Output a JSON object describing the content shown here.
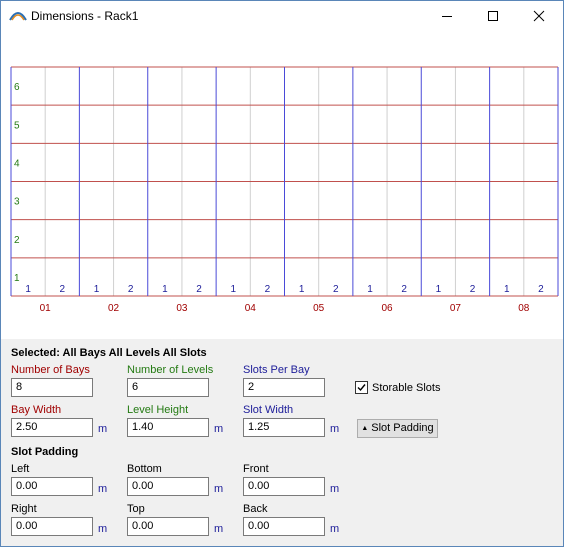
{
  "window": {
    "title": "Dimensions - Rack1"
  },
  "chart_data": {
    "type": "table",
    "levels": [
      "1",
      "2",
      "3",
      "4",
      "5",
      "6"
    ],
    "bays": [
      "01",
      "02",
      "03",
      "04",
      "05",
      "06",
      "07",
      "08"
    ],
    "slot_labels": [
      "1",
      "2"
    ],
    "colors": {
      "level": "#237a12",
      "bay": "#a00000",
      "slot": "#1c1c99",
      "level_line": "#c0504d",
      "bay_line": "#4a4ad8",
      "slot_line": "#d0d0d0"
    }
  },
  "panel": {
    "selected_title": "Selected: All Bays All Levels All Slots",
    "number_of_bays": {
      "label": "Number of Bays",
      "value": "8"
    },
    "number_of_levels": {
      "label": "Number of Levels",
      "value": "6"
    },
    "slots_per_bay": {
      "label": "Slots Per Bay",
      "value": "2"
    },
    "storable_slots": {
      "label": "Storable Slots",
      "checked": true
    },
    "bay_width": {
      "label": "Bay Width",
      "value": "2.50",
      "unit": "m"
    },
    "level_height": {
      "label": "Level Height",
      "value": "1.40",
      "unit": "m"
    },
    "slot_width": {
      "label": "Slot Width",
      "value": "1.25",
      "unit": "m"
    },
    "slot_padding_button": {
      "label": "Slot Padding"
    },
    "slot_padding_title": "Slot Padding",
    "left": {
      "label": "Left",
      "value": "0.00",
      "unit": "m"
    },
    "bottom": {
      "label": "Bottom",
      "value": "0.00",
      "unit": "m"
    },
    "front": {
      "label": "Front",
      "value": "0.00",
      "unit": "m"
    },
    "right": {
      "label": "Right",
      "value": "0.00",
      "unit": "m"
    },
    "top": {
      "label": "Top",
      "value": "0.00",
      "unit": "m"
    },
    "back": {
      "label": "Back",
      "value": "0.00",
      "unit": "m"
    }
  }
}
